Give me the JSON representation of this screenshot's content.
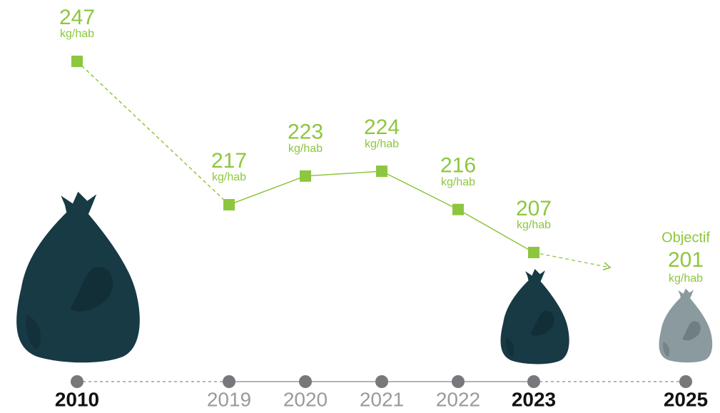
{
  "chart_data": {
    "type": "line",
    "categories": [
      "2010",
      "2019",
      "2020",
      "2021",
      "2022",
      "2023",
      "2025"
    ],
    "values": [
      247,
      217,
      223,
      224,
      216,
      207,
      null
    ],
    "unit": "kg/hab",
    "color": "#8dc63f",
    "ylim": [
      190,
      250
    ],
    "target": {
      "label": "Objectif",
      "value": 201
    }
  }
}
